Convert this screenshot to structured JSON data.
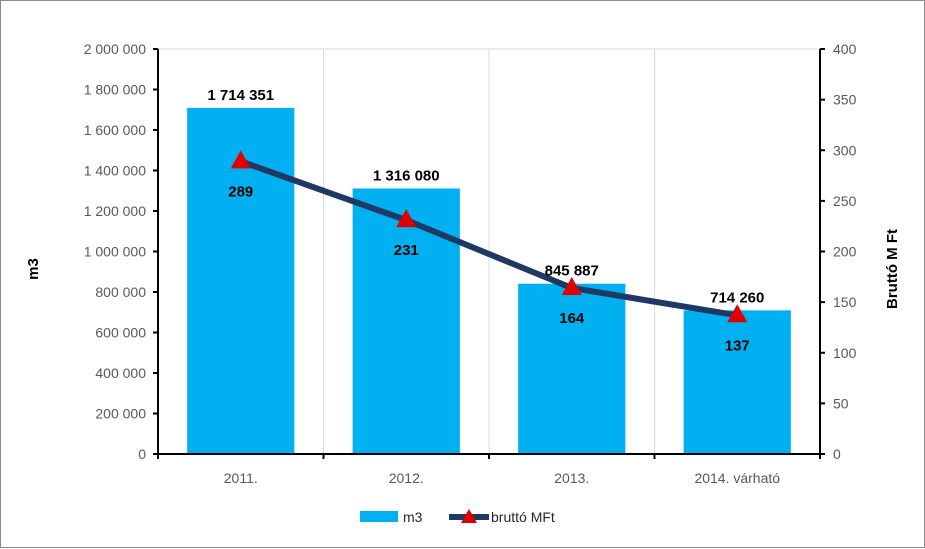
{
  "chart_data": {
    "type": "bar",
    "categories": [
      "2011.",
      "2012.",
      "2013.",
      "2014. várható"
    ],
    "series": [
      {
        "name": "m3",
        "type": "bar",
        "axis": "left",
        "values": [
          1714351,
          1316080,
          845887,
          714260
        ],
        "labels": [
          "1 714 351",
          "1 316 080",
          "845 887",
          "714 260"
        ],
        "color": "#00B0F0"
      },
      {
        "name": "bruttó MFt",
        "type": "line",
        "axis": "right",
        "values": [
          289,
          231,
          164,
          137
        ],
        "labels": [
          "289",
          "231",
          "164",
          "137"
        ],
        "color": "#1F3864",
        "marker_color": "#E00000",
        "marker": "triangle"
      }
    ],
    "ylabel": "m3",
    "y2label": "Bruttó M Ft",
    "ylim": [
      0,
      2000000
    ],
    "y2lim": [
      0,
      400
    ],
    "yticks": [
      "0",
      "200 000",
      "400 000",
      "600 000",
      "800 000",
      "1 000 000",
      "1 200 000",
      "1 400 000",
      "1 600 000",
      "1 800 000",
      "2 000 000"
    ],
    "y2ticks": [
      "0",
      "50",
      "100",
      "150",
      "200",
      "250",
      "300",
      "350",
      "400"
    ],
    "grid": "vertical",
    "legend": "bottom"
  }
}
